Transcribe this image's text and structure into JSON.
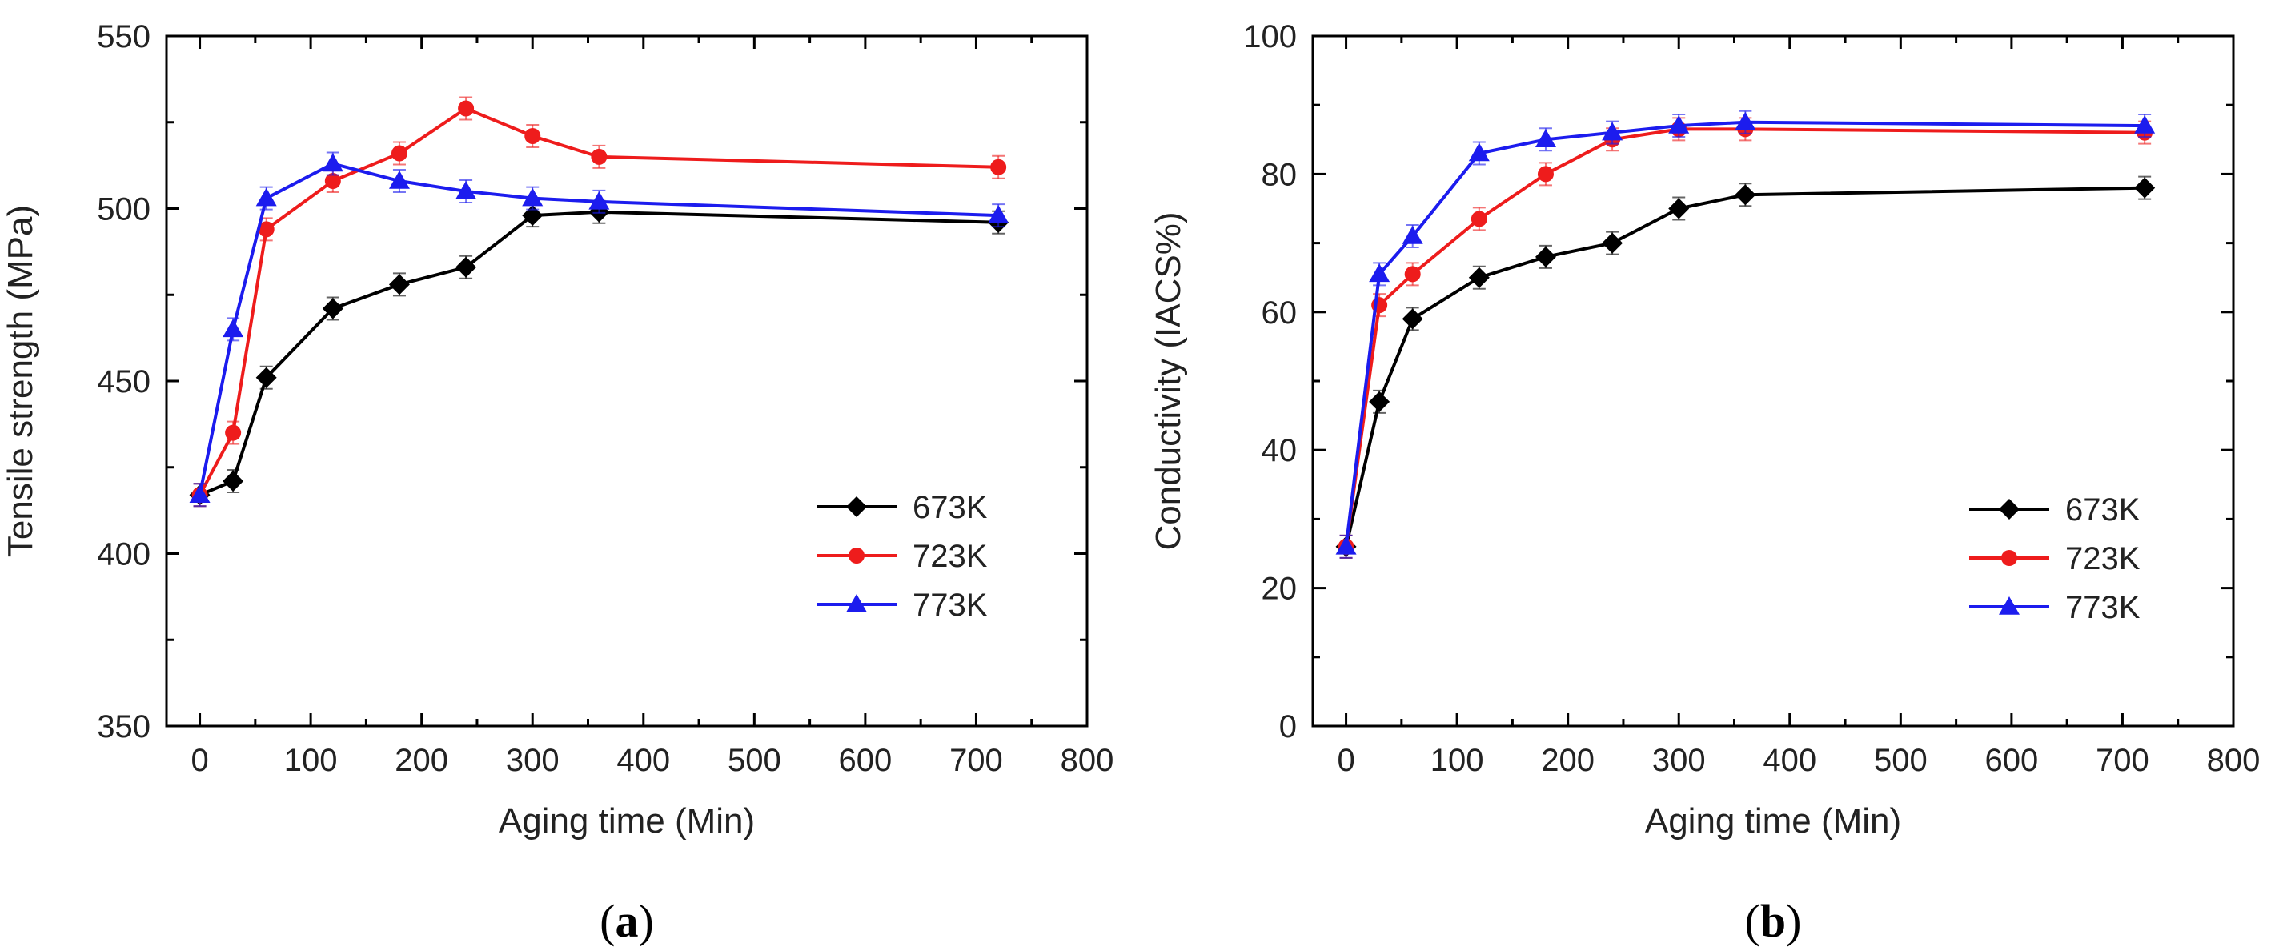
{
  "chart_data": [
    {
      "type": "line",
      "panel_label": "(a)",
      "panel_letter": "a",
      "xlabel": "Aging time (Min)",
      "ylabel": "Tensile strength (MPa)",
      "xlim": [
        -30,
        800
      ],
      "ylim": [
        350,
        550
      ],
      "xticks": [
        0,
        100,
        200,
        300,
        400,
        500,
        600,
        700,
        800
      ],
      "yticks": [
        350,
        400,
        450,
        500,
        550
      ],
      "legend_position": "lower-right",
      "series": [
        {
          "name": "673K",
          "color": "#000000",
          "marker": "diamond",
          "x": [
            0,
            30,
            60,
            120,
            180,
            240,
            300,
            360,
            720
          ],
          "y": [
            417,
            421,
            451,
            471,
            478,
            483,
            498,
            499,
            496
          ]
        },
        {
          "name": "723K",
          "color": "#ee1c1c",
          "marker": "circle",
          "x": [
            0,
            30,
            60,
            120,
            180,
            240,
            300,
            360,
            720
          ],
          "y": [
            417,
            435,
            494,
            508,
            516,
            529,
            521,
            515,
            512
          ]
        },
        {
          "name": "773K",
          "color": "#1c1cee",
          "marker": "triangle",
          "x": [
            0,
            30,
            60,
            120,
            180,
            240,
            300,
            360,
            720
          ],
          "y": [
            417,
            465,
            503,
            513,
            508,
            505,
            503,
            502,
            498
          ]
        }
      ]
    },
    {
      "type": "line",
      "panel_label": "(b)",
      "panel_letter": "b",
      "xlabel": "Aging time (Min)",
      "ylabel": "Conductivity (IACS%)",
      "xlim": [
        -30,
        800
      ],
      "ylim": [
        0,
        100
      ],
      "xticks": [
        0,
        100,
        200,
        300,
        400,
        500,
        600,
        700,
        800
      ],
      "yticks": [
        0,
        20,
        40,
        60,
        80,
        100
      ],
      "legend_position": "lower-right",
      "series": [
        {
          "name": "673K",
          "color": "#000000",
          "marker": "diamond",
          "x": [
            0,
            30,
            60,
            120,
            180,
            240,
            300,
            360,
            720
          ],
          "y": [
            26,
            47,
            59,
            65,
            68,
            70,
            75,
            77,
            78
          ]
        },
        {
          "name": "723K",
          "color": "#ee1c1c",
          "marker": "circle",
          "x": [
            0,
            30,
            60,
            120,
            180,
            240,
            300,
            360,
            720
          ],
          "y": [
            26,
            61,
            65.5,
            73.5,
            80,
            85,
            86.5,
            86.5,
            86
          ]
        },
        {
          "name": "773K",
          "color": "#1c1cee",
          "marker": "triangle",
          "x": [
            0,
            30,
            60,
            120,
            180,
            240,
            300,
            360,
            720
          ],
          "y": [
            26,
            65.5,
            71,
            83,
            85,
            86,
            87,
            87.5,
            87
          ]
        }
      ]
    }
  ]
}
